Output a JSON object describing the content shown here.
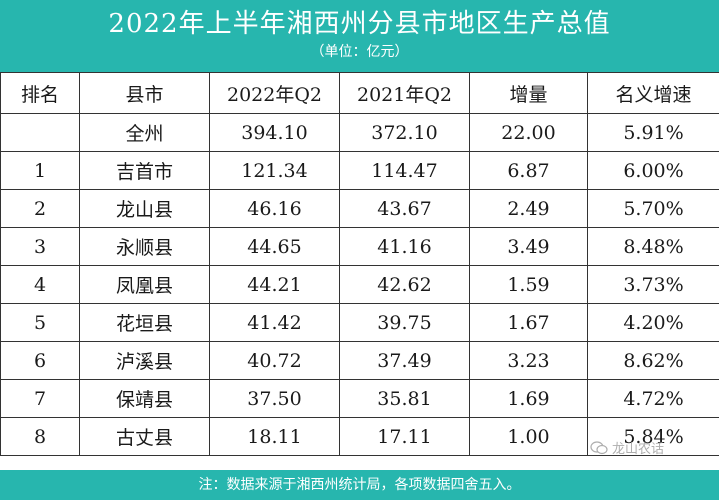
{
  "title": "2022年上半年湘西州分县市地区生产总值",
  "unit": "（单位：亿元）",
  "columns": [
    "排名",
    "县市",
    "2022年Q2",
    "2021年Q2",
    "增量",
    "名义增速"
  ],
  "rows": [
    {
      "rank": "",
      "county": "全州",
      "q2_2022": "394.10",
      "q2_2021": "372.10",
      "increment": "22.00",
      "growth": "5.91%"
    },
    {
      "rank": "1",
      "county": "吉首市",
      "q2_2022": "121.34",
      "q2_2021": "114.47",
      "increment": "6.87",
      "growth": "6.00%"
    },
    {
      "rank": "2",
      "county": "龙山县",
      "q2_2022": "46.16",
      "q2_2021": "43.67",
      "increment": "2.49",
      "growth": "5.70%"
    },
    {
      "rank": "3",
      "county": "永顺县",
      "q2_2022": "44.65",
      "q2_2021": "41.16",
      "increment": "3.49",
      "growth": "8.48%"
    },
    {
      "rank": "4",
      "county": "凤凰县",
      "q2_2022": "44.21",
      "q2_2021": "42.62",
      "increment": "1.59",
      "growth": "3.73%"
    },
    {
      "rank": "5",
      "county": "花垣县",
      "q2_2022": "41.42",
      "q2_2021": "39.75",
      "increment": "1.67",
      "growth": "4.20%"
    },
    {
      "rank": "6",
      "county": "泸溪县",
      "q2_2022": "40.72",
      "q2_2021": "37.49",
      "increment": "3.23",
      "growth": "8.62%"
    },
    {
      "rank": "7",
      "county": "保靖县",
      "q2_2022": "37.50",
      "q2_2021": "35.81",
      "increment": "1.69",
      "growth": "4.72%"
    },
    {
      "rank": "8",
      "county": "古丈县",
      "q2_2022": "18.11",
      "q2_2021": "17.11",
      "increment": "1.00",
      "growth": "5.84%"
    }
  ],
  "footer": "注：数据来源于湘西州统计局，各项数据四舍五入。",
  "watermark": "龙山农话",
  "colors": {
    "banner": "#27b6ae",
    "text": "#1a1a1a",
    "border": "#333333"
  }
}
